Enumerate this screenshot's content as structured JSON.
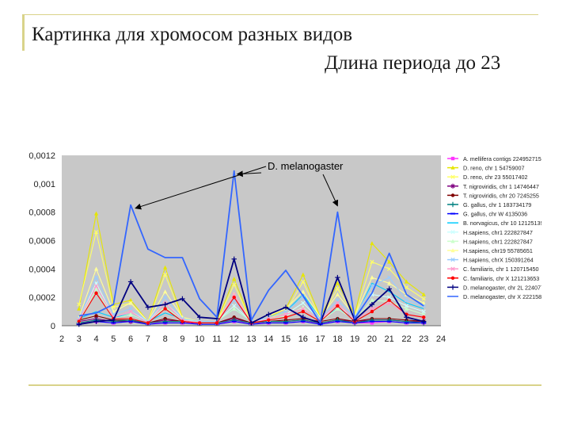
{
  "slide": {
    "title": "Картинка для хромосом разных видов",
    "subtitle": "Длина периода до 23"
  },
  "chart_data": {
    "type": "line",
    "title": "",
    "xlabel": "",
    "ylabel": "",
    "x": [
      2,
      3,
      4,
      5,
      6,
      7,
      8,
      9,
      10,
      11,
      12,
      13,
      14,
      15,
      16,
      17,
      18,
      19,
      20,
      21,
      22,
      23
    ],
    "x_ticks": [
      "2",
      "3",
      "4",
      "5",
      "6",
      "7",
      "8",
      "9",
      "10",
      "11",
      "12",
      "13",
      "14",
      "15",
      "16",
      "17",
      "18",
      "19",
      "20",
      "21",
      "22",
      "23",
      "24"
    ],
    "xlim": [
      2,
      24
    ],
    "ylim": [
      0,
      0.0012
    ],
    "y_ticks": [
      "0",
      "0,0002",
      "0,0004",
      "0,0006",
      "0,0008",
      "0,001",
      "0,0012"
    ],
    "y_tick_values": [
      0,
      0.0002,
      0.0004,
      0.0006,
      0.0008,
      0.001,
      0.0012
    ],
    "grid": false,
    "legend_position": "right",
    "plot_bg": "#c8c8c8",
    "annotation": {
      "text": "D. melanogaster",
      "arrows_to_x": [
        6,
        12,
        18
      ]
    },
    "series": [
      {
        "name": "A. mellifera contigs 224952715",
        "color": "#ff33ff",
        "values": [
          null,
          2e-05,
          3e-05,
          2e-05,
          3e-05,
          2e-05,
          2e-05,
          2e-05,
          2e-05,
          2e-05,
          3e-05,
          2e-05,
          2e-05,
          2e-05,
          3e-05,
          2e-05,
          3e-05,
          2e-05,
          2e-05,
          3e-05,
          2e-05,
          2e-05
        ]
      },
      {
        "name": "D. reno, chr 1 54759007",
        "color": "#e6e600",
        "values": [
          null,
          0.00012,
          0.00079,
          0.00015,
          0.00018,
          3e-05,
          0.00041,
          6e-05,
          3e-05,
          3e-05,
          0.00033,
          3e-05,
          6e-05,
          0.00012,
          0.00036,
          6e-05,
          0.0003,
          8e-05,
          0.00058,
          0.00045,
          0.00031,
          0.00022
        ]
      },
      {
        "name": "D. reno, chr 23 55017402",
        "color": "#ffff66",
        "values": [
          null,
          0.00015,
          0.00066,
          0.00013,
          0.00016,
          3e-05,
          0.00036,
          5e-05,
          3e-05,
          3e-05,
          0.00029,
          3e-05,
          5e-05,
          0.0001,
          0.00031,
          5e-05,
          0.00026,
          7e-05,
          0.00045,
          0.0004,
          0.00027,
          0.00019
        ]
      },
      {
        "name": "T. nigroviridis, chr 1 14746447",
        "color": "#7f0080",
        "values": [
          null,
          3e-05,
          5e-05,
          3e-05,
          3e-05,
          2e-05,
          4e-05,
          3e-05,
          2e-05,
          2e-05,
          5e-05,
          2e-05,
          3e-05,
          3e-05,
          4e-05,
          2e-05,
          4e-05,
          3e-05,
          4e-05,
          4e-05,
          3e-05,
          3e-05
        ]
      },
      {
        "name": "T. nigroviridis, chr 20 7245255",
        "color": "#800000",
        "values": [
          null,
          4e-05,
          7e-05,
          4e-05,
          4e-05,
          2e-05,
          5e-05,
          3e-05,
          2e-05,
          2e-05,
          6e-05,
          2e-05,
          3e-05,
          4e-05,
          5e-05,
          3e-05,
          5e-05,
          3e-05,
          5e-05,
          5e-05,
          4e-05,
          3e-05
        ]
      },
      {
        "name": "G. gallus, chr 1 183734179",
        "color": "#008080",
        "values": [
          null,
          2e-05,
          4e-05,
          3e-05,
          4e-05,
          2e-05,
          3e-05,
          3e-05,
          2e-05,
          2e-05,
          4e-05,
          2e-05,
          3e-05,
          3e-05,
          4e-05,
          2e-05,
          4e-05,
          2e-05,
          4e-05,
          4e-05,
          3e-05,
          2e-05
        ]
      },
      {
        "name": "G. gallus, chr W 4135036",
        "color": "#0000ff",
        "values": [
          null,
          1e-05,
          3e-05,
          2e-05,
          3e-05,
          1e-05,
          2e-05,
          2e-05,
          1e-05,
          1e-05,
          3e-05,
          1e-05,
          2e-05,
          2e-05,
          3e-05,
          1e-05,
          3e-05,
          2e-05,
          3e-05,
          3e-05,
          2e-05,
          2e-05
        ]
      },
      {
        "name": "B. norvagicus, chr 10 12125139",
        "color": "#00ccff",
        "values": [
          null,
          5e-05,
          0.0001,
          6e-05,
          8e-05,
          3e-05,
          9e-05,
          5e-05,
          3e-05,
          3e-05,
          0.00012,
          3e-05,
          6e-05,
          0.0001,
          0.00022,
          5e-05,
          0.00012,
          5e-05,
          0.0003,
          0.00024,
          0.00016,
          0.00012
        ]
      },
      {
        "name": "H.sapiens, chr1 222827847",
        "color": "#ccffff",
        "values": [
          null,
          4e-05,
          0.0003,
          6e-05,
          0.0001,
          3e-05,
          0.00016,
          5e-05,
          3e-05,
          3e-05,
          0.00014,
          3e-05,
          5e-05,
          8e-05,
          0.00016,
          4e-05,
          0.00014,
          5e-05,
          0.00022,
          0.0002,
          0.00014,
          0.0001
        ]
      },
      {
        "name": "H.sapiens, chr1 222827847",
        "color": "#ccffcc",
        "values": [
          null,
          3e-05,
          0.00026,
          5e-05,
          8e-05,
          3e-05,
          0.00013,
          4e-05,
          3e-05,
          3e-05,
          0.00012,
          3e-05,
          4e-05,
          7e-05,
          0.00013,
          3e-05,
          0.00012,
          4e-05,
          0.00018,
          0.00017,
          0.00012,
          8e-05
        ]
      },
      {
        "name": "H.sapiens, chr19 55785651",
        "color": "#ffff99",
        "values": [
          null,
          6e-05,
          0.0004,
          0.0001,
          0.00016,
          3e-05,
          0.00024,
          6e-05,
          3e-05,
          3e-05,
          0.00022,
          3e-05,
          7e-05,
          0.00012,
          0.00024,
          6e-05,
          0.00022,
          7e-05,
          0.00034,
          0.0003,
          0.00022,
          0.00016
        ]
      },
      {
        "name": "H.sapiens, chrX 150391264",
        "color": "#99ccff",
        "values": [
          null,
          5e-05,
          0.00034,
          8e-05,
          0.00012,
          3e-05,
          0.0002,
          5e-05,
          3e-05,
          3e-05,
          0.00018,
          3e-05,
          6e-05,
          0.0001,
          0.0002,
          5e-05,
          0.00018,
          6e-05,
          0.00028,
          0.00034,
          0.00018,
          0.00014
        ]
      },
      {
        "name": "C. familiaris, chr 1 120715450",
        "color": "#ff99cc",
        "values": [
          null,
          4e-05,
          0.00028,
          6e-05,
          0.0001,
          2e-05,
          0.00016,
          4e-05,
          2e-05,
          2e-05,
          0.00022,
          2e-05,
          5e-05,
          8e-05,
          0.00012,
          4e-05,
          0.00016,
          4e-05,
          0.00012,
          0.00016,
          8e-05,
          6e-05
        ]
      },
      {
        "name": "C. familiaris, chr X 121213653",
        "color": "#ff0000",
        "values": [
          null,
          3e-05,
          0.00023,
          5e-05,
          5e-05,
          2e-05,
          0.00012,
          3e-05,
          2e-05,
          2e-05,
          0.0002,
          2e-05,
          4e-05,
          6e-05,
          0.0001,
          3e-05,
          0.00014,
          3e-05,
          0.0001,
          0.00018,
          8e-05,
          6e-05
        ]
      },
      {
        "name": "D. melanogaster, chr 2L 22407725",
        "color": "#000080",
        "values": [
          null,
          1e-05,
          3e-05,
          4e-05,
          0.00031,
          0.00013,
          0.00015,
          0.00019,
          6e-05,
          5e-05,
          0.00047,
          2e-05,
          8e-05,
          0.00013,
          6e-05,
          2e-05,
          0.00034,
          4e-05,
          0.00015,
          0.00026,
          6e-05,
          3e-05
        ]
      },
      {
        "name": "D. melanogaster, chr X 22215891",
        "color": "#3366ff",
        "values": [
          null,
          7e-05,
          9e-05,
          0.00015,
          0.00085,
          0.00054,
          0.00048,
          0.00048,
          0.00019,
          6e-05,
          0.00109,
          4e-05,
          0.00025,
          0.00039,
          0.00021,
          2e-05,
          0.0008,
          5e-05,
          0.00023,
          0.00051,
          0.00022,
          0.00014
        ]
      }
    ]
  }
}
